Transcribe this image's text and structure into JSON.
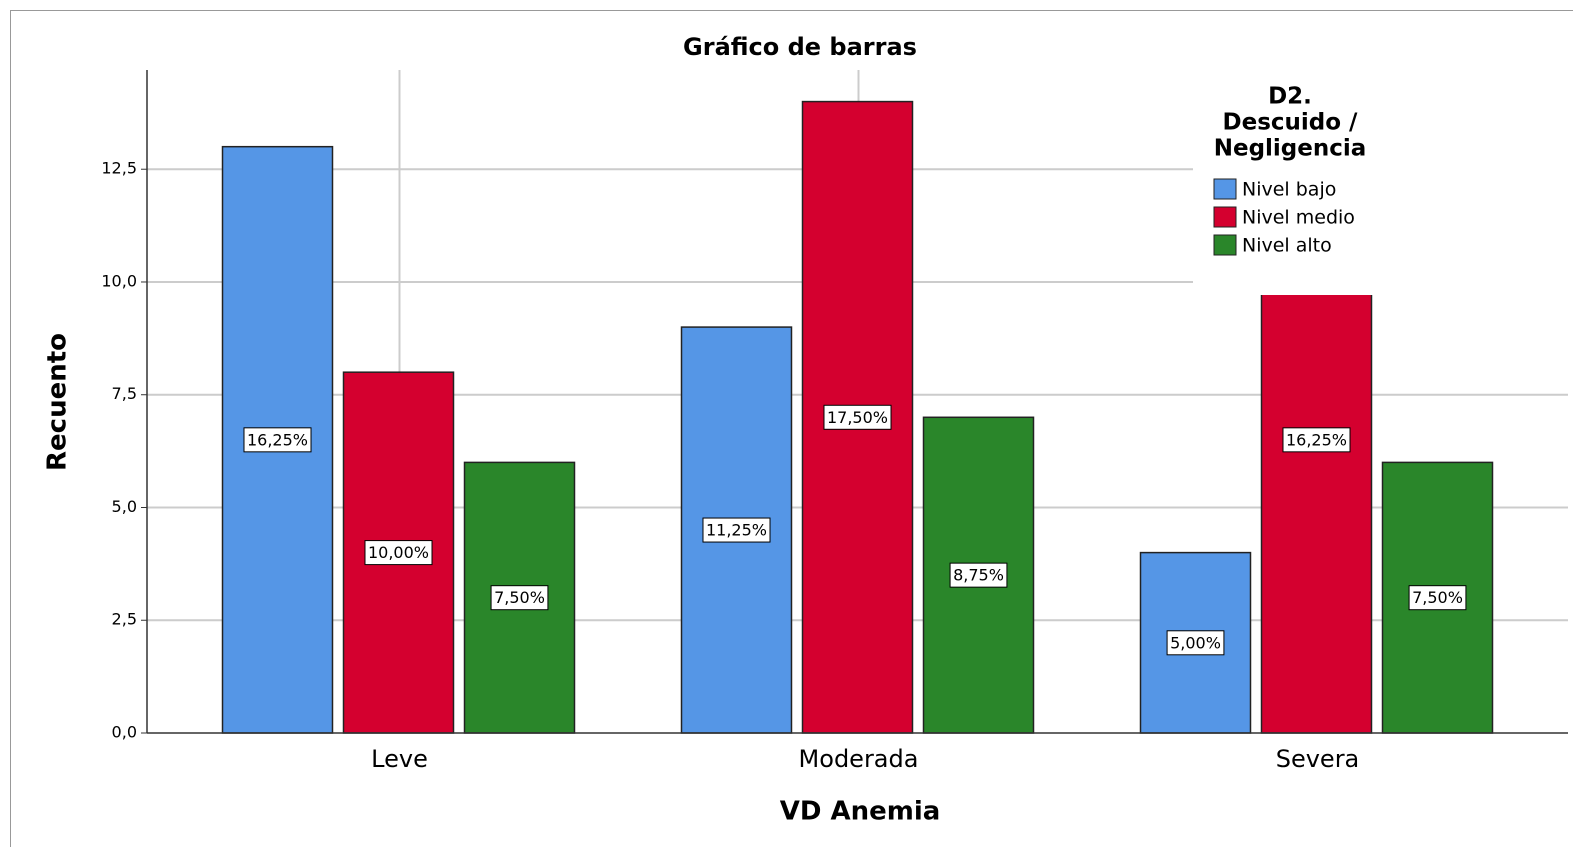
{
  "chart_data": {
    "type": "bar",
    "title": "Gráfico de barras",
    "x_label": "VD Anemia",
    "y_label": "Recuento",
    "categories": [
      "Leve",
      "Moderada",
      "Severa"
    ],
    "legend_title": [
      "D2.",
      "Descuido /",
      "Negligencia"
    ],
    "series": [
      {
        "name": "Nivel bajo",
        "color": "#5596e6",
        "values": [
          13,
          9,
          4
        ],
        "data_labels": [
          "16,25%",
          "11,25%",
          "5,00%"
        ]
      },
      {
        "name": "Nivel medio",
        "color": "#d4002f",
        "values": [
          8,
          14,
          13
        ],
        "data_labels": [
          "10,00%",
          "17,50%",
          "16,25%"
        ]
      },
      {
        "name": "Nivel alto",
        "color": "#2a862a",
        "values": [
          6,
          7,
          6
        ],
        "data_labels": [
          "7,50%",
          "8,75%",
          "7,50%"
        ]
      }
    ],
    "ylim": [
      0,
      14.7
    ],
    "yticks": [
      {
        "value": 0,
        "label": "0,0"
      },
      {
        "value": 2.5,
        "label": "2,5"
      },
      {
        "value": 5,
        "label": "5,0"
      },
      {
        "value": 7.5,
        "label": "7,5"
      },
      {
        "value": 10,
        "label": "10,0"
      },
      {
        "value": 12.5,
        "label": "12,5"
      }
    ],
    "grid": true,
    "legend": "top-right"
  }
}
